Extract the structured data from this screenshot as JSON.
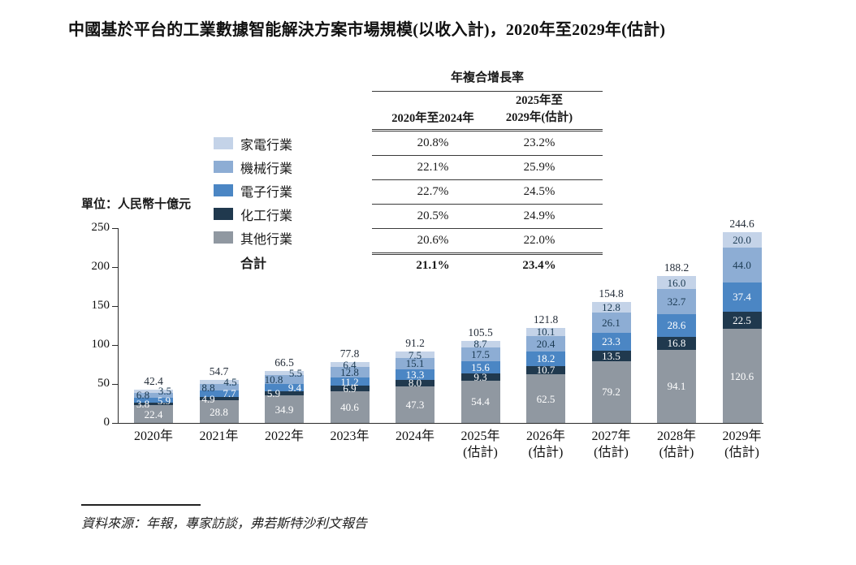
{
  "title": "中國基於平台的工業數據智能解決方案市場規模(以收入計)，2020年至2029年(估計)",
  "unit_label": "單位：人民幣十億元",
  "cagr_table": {
    "header": "年複合增長率",
    "col1_header": "2020年至2024年",
    "col2_header_line1": "2025年至",
    "col2_header_line2": "2029年(估計)",
    "rows": [
      {
        "industry": "家電行業",
        "cagr_2020_2024": "20.8%",
        "cagr_2025_2029": "23.2%"
      },
      {
        "industry": "機械行業",
        "cagr_2020_2024": "22.1%",
        "cagr_2025_2029": "25.9%"
      },
      {
        "industry": "電子行業",
        "cagr_2020_2024": "22.7%",
        "cagr_2025_2029": "24.5%"
      },
      {
        "industry": "化工行業",
        "cagr_2020_2024": "20.5%",
        "cagr_2025_2029": "24.9%"
      },
      {
        "industry": "其他行業",
        "cagr_2020_2024": "20.6%",
        "cagr_2025_2029": "22.0%"
      }
    ],
    "total_row": {
      "label": "合計",
      "cagr_2020_2024": "21.1%",
      "cagr_2025_2029": "23.4%"
    }
  },
  "chart_data": {
    "type": "bar",
    "stacked": true,
    "title": "中國基於平台的工業數據智能解決方案市場規模(以收入計)，2020年至2029年(估計)",
    "ylabel": "單位：人民幣十億元",
    "ylim": [
      0,
      250
    ],
    "yticks": [
      0,
      50,
      100,
      150,
      200,
      250
    ],
    "grid": false,
    "legend_position": "left-of-cagr-table",
    "categories": [
      {
        "label": "2020年",
        "sublabel": ""
      },
      {
        "label": "2021年",
        "sublabel": ""
      },
      {
        "label": "2022年",
        "sublabel": ""
      },
      {
        "label": "2023年",
        "sublabel": ""
      },
      {
        "label": "2024年",
        "sublabel": ""
      },
      {
        "label": "2025年",
        "sublabel": "(估計)"
      },
      {
        "label": "2026年",
        "sublabel": "(估計)"
      },
      {
        "label": "2027年",
        "sublabel": "(估計)"
      },
      {
        "label": "2028年",
        "sublabel": "(估計)"
      },
      {
        "label": "2029年",
        "sublabel": "(估計)"
      }
    ],
    "series": [
      {
        "key": "others",
        "name": "其他行業",
        "color": "#9098a1",
        "label_color": "#ffffff",
        "values": [
          22.4,
          28.8,
          34.9,
          40.6,
          47.3,
          54.4,
          62.5,
          79.2,
          94.1,
          120.6
        ]
      },
      {
        "key": "chemical",
        "name": "化工行業",
        "color": "#20394e",
        "label_color": "#ffffff",
        "values": [
          3.8,
          4.9,
          5.9,
          6.9,
          8.0,
          9.3,
          10.7,
          13.5,
          16.8,
          22.5
        ]
      },
      {
        "key": "electronics",
        "name": "電子行業",
        "color": "#4b86c4",
        "label_color": "#ffffff",
        "values": [
          5.9,
          7.7,
          9.4,
          11.2,
          13.3,
          15.6,
          18.2,
          23.3,
          28.6,
          37.4
        ]
      },
      {
        "key": "machinery",
        "name": "機械行業",
        "color": "#8dadd4",
        "label_color": "#1b3a52",
        "values": [
          6.8,
          8.8,
          10.8,
          12.8,
          15.1,
          17.5,
          20.4,
          26.1,
          32.7,
          44.0
        ]
      },
      {
        "key": "appliance",
        "name": "家電行業",
        "color": "#c4d3e8",
        "label_color": "#1b3a52",
        "values": [
          3.5,
          4.5,
          5.5,
          6.4,
          7.5,
          8.7,
          10.1,
          12.8,
          16.0,
          20.0
        ]
      }
    ],
    "totals": [
      42.4,
      54.7,
      66.5,
      77.8,
      91.2,
      105.5,
      121.8,
      154.8,
      188.2,
      244.6
    ]
  },
  "source": "資料來源：年報，專家訪談，弗若斯特沙利文報告"
}
